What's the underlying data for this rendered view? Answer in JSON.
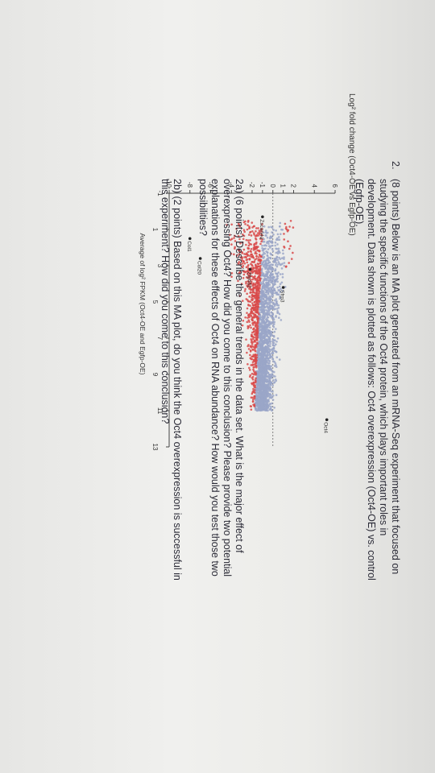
{
  "question": {
    "number": "2.",
    "intro_lines": [
      "(8 points) Below is an MA plot generated from an mRNA-Seq experiment that focused on",
      "studying the specific functions of the Oct4 protein, which plays important roles in",
      "development. Data shown is plotted as follows: Oct4 overexpression (Oct4-OE) vs. control",
      "(Egfp-OE)."
    ],
    "part_a_lines": [
      "2a) (6 points) Describe the general trends in the data set. What is the major effect of",
      "overexpressing Oct4? How did you come to this conclusion? Please provide two potential",
      "explanations for these effects of Oct4 on RNA abundance? How would you test those two",
      "possibilities?"
    ],
    "part_b_lines": [
      "2b) (2 points) Based on this MA plot, do you think the Oct4 overexpression is successful in",
      "this experiment? How did you come to this conclusion?"
    ]
  },
  "chart_data": {
    "type": "scatter",
    "title": "",
    "ylabel": "Log² fold change (Oct4-OE vs Egfp-OE)",
    "xlabel": "Average of log² FPKM (Oct4-OE and Egfp-OE)",
    "x_ticks": [
      "-1",
      "1",
      "3",
      "5",
      "7",
      "9",
      "11",
      "13"
    ],
    "y_ticks": [
      "6",
      "4",
      "2",
      "1",
      "0",
      "-1",
      "-2",
      "-4",
      "-6",
      "-8",
      "-10"
    ],
    "xlim": [
      -1,
      13
    ],
    "ylim": [
      -10,
      6
    ],
    "colors": {
      "significant": "#d84a4a",
      "not_significant": "#9aa6c8"
    },
    "annotations": [
      {
        "label": "Oct4",
        "x": 11.5,
        "y": 5.2
      },
      {
        "label": "Sfrp3",
        "x": 4.2,
        "y": 1.0
      },
      {
        "label": "Zscan4a",
        "x": 0.3,
        "y": -1.0
      },
      {
        "label": "Zfp462",
        "x": 3.2,
        "y": -2.2
      },
      {
        "label": "Col20",
        "x": 2.6,
        "y": -7.0
      },
      {
        "label": "Col1",
        "x": 1.5,
        "y": -8.0
      }
    ]
  }
}
